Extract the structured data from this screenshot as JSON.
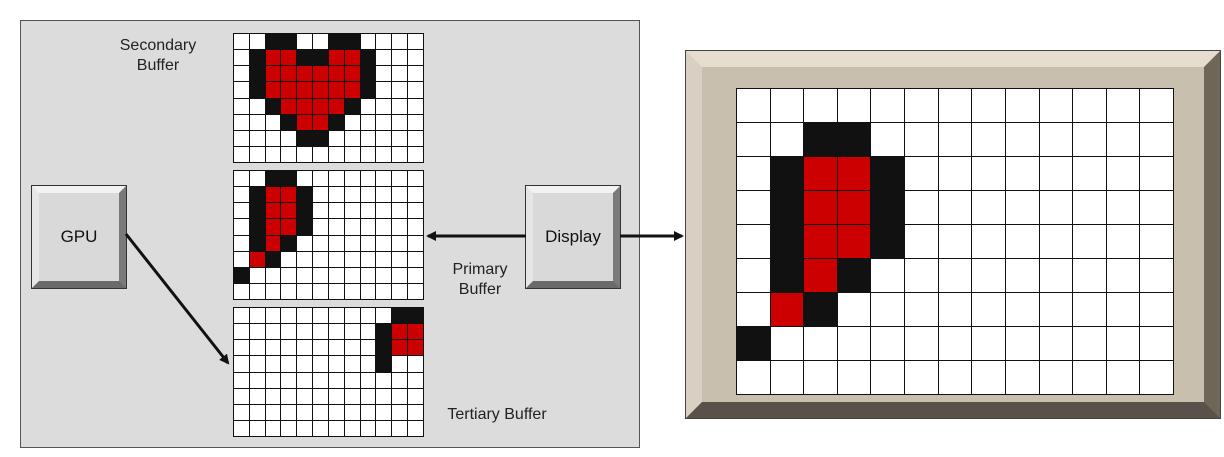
{
  "labels": {
    "secondary_buffer": [
      "Secondary",
      "Buffer"
    ],
    "primary_buffer": [
      "Primary",
      "Buffer"
    ],
    "tertiary_buffer": "Tertiary Buffer",
    "gpu": "GPU",
    "display": "Display"
  },
  "colors": {
    "panel": "#dcdcdc",
    "pixel_on": "#111111",
    "pixel_red": "#cc0000",
    "pixel_off": "#ffffff",
    "frame": "#c8bfae"
  },
  "buffers": {
    "secondary": {
      "cols": 12,
      "rows": 8,
      "pixels": [
        "..bb..bb....",
        ".brrbbrrb...",
        ".brrrrrrb...",
        ".brrrrrrb...",
        "..brrrrb....",
        "...brrb.....",
        "....bb......",
        "............"
      ]
    },
    "primary": {
      "cols": 12,
      "rows": 8,
      "pixels": [
        "..bb........",
        ".brrb.......",
        ".brrb.......",
        ".brrb.......",
        ".brb........",
        ".rb.........",
        "b...........",
        "............"
      ]
    },
    "tertiary": {
      "cols": 12,
      "rows": 8,
      "pixels": [
        "..........bb",
        ".........brr",
        ".........brr",
        ".........b..",
        "............",
        "............",
        "............",
        "............"
      ]
    },
    "display": {
      "cols": 13,
      "rows": 9,
      "pixels": [
        ".............",
        "..bb.........",
        ".brrb........",
        ".brrb........",
        ".brrb........",
        ".brb.........",
        ".rb..........",
        "b............",
        "............."
      ]
    }
  }
}
